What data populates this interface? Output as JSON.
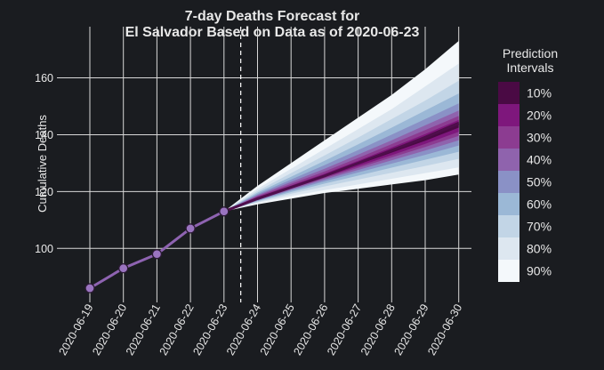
{
  "chart_data": {
    "type": "line",
    "title_line1": "7-day Deaths Forecast for",
    "title_line2": "El Salvador Based on Data as of 2020-06-23",
    "xlabel": "",
    "ylabel": "Cumulative Deaths",
    "x_ticks": [
      "2020-06-19",
      "2020-06-20",
      "2020-06-21",
      "2020-06-22",
      "2020-06-23",
      "2020-06-24",
      "2020-06-25",
      "2020-06-26",
      "2020-06-27",
      "2020-06-28",
      "2020-06-29",
      "2020-06-30"
    ],
    "y_ticks": [
      100,
      120,
      140,
      160
    ],
    "ylim": [
      81,
      178
    ],
    "forecast_start_marker": "2020-06-23.5",
    "grid": true,
    "observed": {
      "x": [
        "2020-06-19",
        "2020-06-20",
        "2020-06-21",
        "2020-06-22",
        "2020-06-23"
      ],
      "y": [
        86,
        93,
        98,
        107,
        113
      ]
    },
    "forecast": {
      "x": [
        "2020-06-23",
        "2020-06-24",
        "2020-06-25",
        "2020-06-26",
        "2020-06-27",
        "2020-06-28",
        "2020-06-29",
        "2020-06-30"
      ],
      "median": [
        113,
        117.5,
        121.5,
        125.5,
        130,
        134.5,
        139,
        144
      ],
      "intervals": [
        {
          "level": "90%",
          "lower": [
            113,
            115.5,
            117.5,
            119.5,
            121,
            122.5,
            124,
            126
          ],
          "upper": [
            113,
            122,
            130,
            138,
            146,
            154,
            163,
            173
          ]
        },
        {
          "level": "80%",
          "lower": [
            113,
            116,
            118.5,
            120.5,
            122.5,
            124.5,
            126.5,
            128.5
          ],
          "upper": [
            113,
            121,
            128,
            135,
            142,
            149,
            157,
            165
          ]
        },
        {
          "level": "70%",
          "lower": [
            113,
            116.3,
            119.2,
            121.8,
            124.2,
            126.6,
            129,
            131.5
          ],
          "upper": [
            113,
            120.2,
            126.5,
            132.7,
            139,
            145.5,
            152,
            159
          ]
        },
        {
          "level": "60%",
          "lower": [
            113,
            116.6,
            119.8,
            122.8,
            125.6,
            128.4,
            131.2,
            134
          ],
          "upper": [
            113,
            119.6,
            125.2,
            130.8,
            136.6,
            142.5,
            148.5,
            154.5
          ]
        },
        {
          "level": "50%",
          "lower": [
            113,
            116.8,
            120.3,
            123.6,
            126.7,
            129.8,
            132.9,
            136.2
          ],
          "upper": [
            113,
            119.1,
            124.2,
            129.3,
            134.6,
            140,
            145.5,
            151
          ]
        },
        {
          "level": "40%",
          "lower": [
            113,
            117,
            120.7,
            124.2,
            127.6,
            131,
            134.4,
            138
          ],
          "upper": [
            113,
            118.7,
            123.4,
            128,
            133,
            138,
            143.3,
            148.5
          ]
        },
        {
          "level": "30%",
          "lower": [
            113,
            117.1,
            121,
            124.7,
            128.3,
            132,
            135.7,
            139.6
          ],
          "upper": [
            113,
            118.4,
            122.7,
            127.1,
            131.8,
            136.7,
            141.6,
            146.6
          ]
        },
        {
          "level": "20%",
          "lower": [
            113,
            117.3,
            121.2,
            125.1,
            128.9,
            132.8,
            136.8,
            141
          ],
          "upper": [
            113,
            118.1,
            122.1,
            126.3,
            130.8,
            135.5,
            140.2,
            145.2
          ]
        },
        {
          "level": "10%",
          "lower": [
            113,
            117.4,
            121.4,
            125.4,
            129.5,
            133.7,
            137.9,
            142.5
          ],
          "upper": [
            113,
            117.8,
            121.7,
            125.8,
            130.3,
            134.9,
            139.6,
            144.6
          ]
        }
      ]
    },
    "legend": {
      "title_line1": "Prediction",
      "title_line2": "Intervals",
      "items": [
        {
          "label": "10%",
          "color": "#4a0a44"
        },
        {
          "label": "20%",
          "color": "#7e177c"
        },
        {
          "label": "30%",
          "color": "#8c3c91"
        },
        {
          "label": "40%",
          "color": "#8f63ad"
        },
        {
          "label": "50%",
          "color": "#8a91c6"
        },
        {
          "label": "60%",
          "color": "#9bb8d6"
        },
        {
          "label": "70%",
          "color": "#c2d5e6"
        },
        {
          "label": "80%",
          "color": "#dde7f0"
        },
        {
          "label": "90%",
          "color": "#f4f8fb"
        }
      ]
    },
    "colors": {
      "background": "#1a1c20",
      "grid": "#d8d8d8",
      "observed_line": "#8e63b1",
      "observed_marker": "#9a74c0",
      "median_line": "#4f0e4c"
    }
  }
}
